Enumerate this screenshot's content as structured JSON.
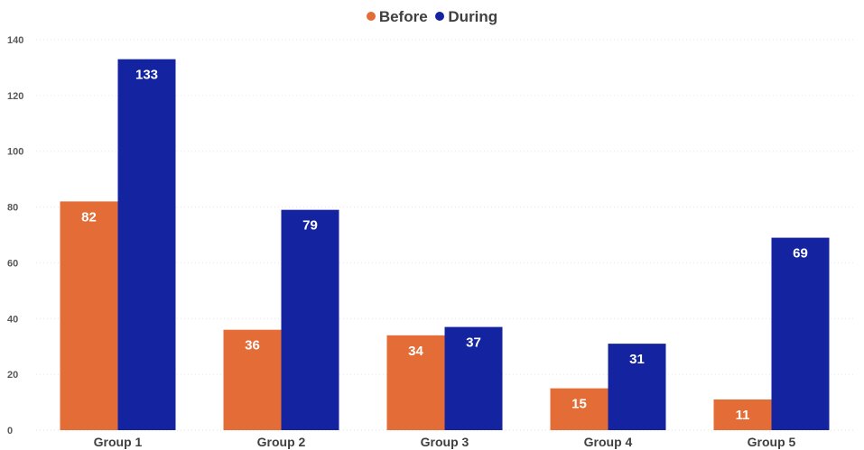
{
  "chart_data": {
    "type": "bar",
    "categories": [
      "Group 1",
      "Group 2",
      "Group 3",
      "Group 4",
      "Group 5"
    ],
    "series": [
      {
        "name": "Before",
        "values": [
          82,
          36,
          34,
          15,
          11
        ],
        "color": "#E46C36"
      },
      {
        "name": "During",
        "values": [
          133,
          79,
          37,
          31,
          69
        ],
        "color": "#1423A0"
      }
    ],
    "ylim": [
      0,
      140
    ],
    "yticks": [
      0,
      20,
      40,
      60,
      80,
      100,
      120,
      140
    ],
    "grid": true,
    "legend_position": "top-center",
    "data_labels": true
  }
}
